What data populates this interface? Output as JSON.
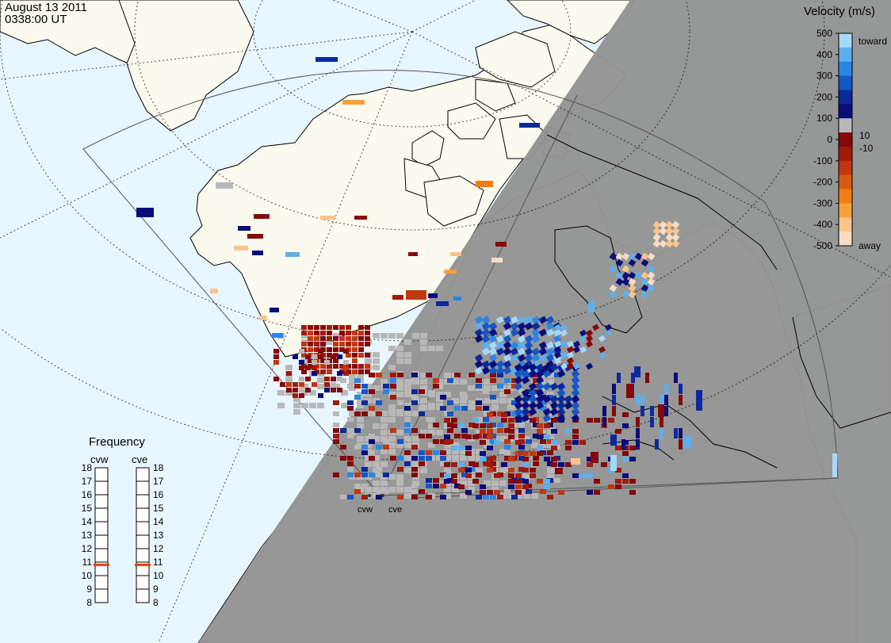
{
  "header": {
    "date": "August 13 2011",
    "time": "0338:00 UT"
  },
  "sites": {
    "west": "cvw",
    "east": "cve"
  },
  "colorbar": {
    "title": "Velocity (m/s)",
    "ticks": [
      "500",
      "400",
      "300",
      "200",
      "100",
      "0",
      "-100",
      "-200",
      "-300",
      "-400",
      "-500"
    ],
    "inner_ticks": [
      "10",
      "-10"
    ],
    "toward_label": "toward",
    "away_label": "away",
    "colors": [
      "#f9dcc4",
      "#fbc48c",
      "#f9a036",
      "#f07e14",
      "#d85a10",
      "#c0380e",
      "#a01a0c",
      "#860808",
      "#b8b8b8",
      "#0a0c7a",
      "#0a2a9c",
      "#1456c4",
      "#2a86e4",
      "#5cb0f0",
      "#a8d8fa"
    ]
  },
  "frequency": {
    "title": "Frequency",
    "left_label": "cvw",
    "right_label": "cve",
    "scale": [
      "18",
      "17",
      "16",
      "15",
      "14",
      "13",
      "12",
      "11",
      "10",
      "9",
      "8"
    ],
    "cvw_mhz": 10.8,
    "cve_mhz": 10.8,
    "marker_color": "#e04010"
  },
  "colors": {
    "ocean": "#e8f6ff",
    "land": "#fbfaee",
    "night": "#939393",
    "ground_scatter": "#c8c8c8"
  }
}
